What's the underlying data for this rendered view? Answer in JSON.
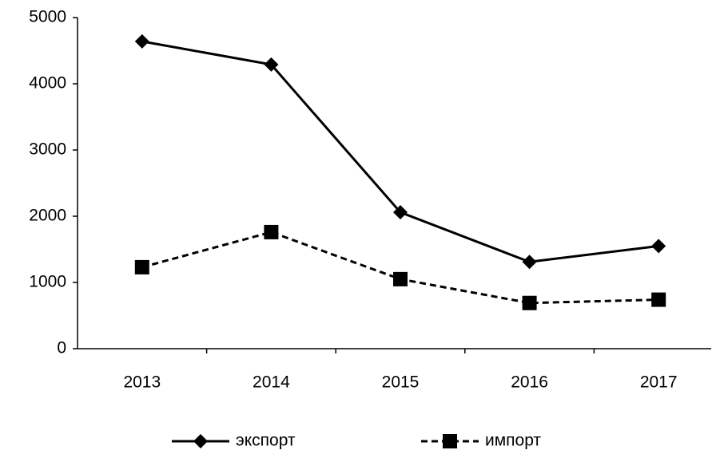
{
  "chart_data": {
    "type": "line",
    "categories": [
      "2013",
      "2014",
      "2015",
      "2016",
      "2017"
    ],
    "series": [
      {
        "name": "экспорт",
        "color": "#000000",
        "line_style": "solid",
        "marker": "diamond",
        "values": [
          4640,
          4290,
          2060,
          1310,
          1550
        ]
      },
      {
        "name": "импорт",
        "color": "#000000",
        "line_style": "dashed",
        "marker": "square",
        "values": [
          1230,
          1760,
          1050,
          690,
          740
        ]
      }
    ],
    "ylim": [
      0,
      5000
    ],
    "yticks": [
      0,
      1000,
      2000,
      3000,
      4000,
      5000
    ],
    "grid": false,
    "legend": "bottom"
  }
}
